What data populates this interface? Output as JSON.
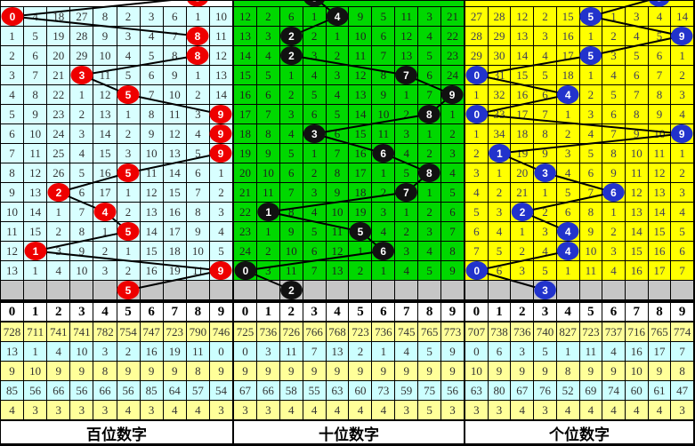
{
  "header_digits": [
    "0",
    "1",
    "2",
    "3",
    "4",
    "5",
    "6",
    "7",
    "8",
    "9"
  ],
  "stat_row_colors": [
    "#ffff99",
    "#ccffff",
    "#ffff99",
    "#ccffff",
    "#ffff99"
  ],
  "line_color": "#000000",
  "gray_row_color": "#c6c6c6",
  "panels": [
    {
      "id": "hundreds",
      "label": "百位数字",
      "bg": "#d8ffff",
      "strip_bg": "#ffffff",
      "text_color": "#333333",
      "circle_color": "#ee0000",
      "prev_draw_col": 8,
      "rows": [
        {
          "cells": [
            "0",
            "4",
            "18",
            "27",
            "8",
            "2",
            "3",
            "6",
            "1",
            "10"
          ],
          "draw": 0
        },
        {
          "cells": [
            "1",
            "5",
            "19",
            "28",
            "9",
            "3",
            "4",
            "7",
            "8",
            "11"
          ],
          "draw": 8
        },
        {
          "cells": [
            "2",
            "6",
            "20",
            "29",
            "10",
            "4",
            "5",
            "8",
            "8",
            "12"
          ],
          "draw": 8
        },
        {
          "cells": [
            "3",
            "7",
            "21",
            "3",
            "11",
            "5",
            "6",
            "9",
            "1",
            "13"
          ],
          "draw": 3
        },
        {
          "cells": [
            "4",
            "8",
            "22",
            "1",
            "12",
            "5",
            "7",
            "10",
            "2",
            "14"
          ],
          "draw": 5
        },
        {
          "cells": [
            "5",
            "9",
            "23",
            "2",
            "13",
            "1",
            "8",
            "11",
            "3",
            "9"
          ],
          "draw": 9
        },
        {
          "cells": [
            "6",
            "10",
            "24",
            "3",
            "14",
            "2",
            "9",
            "12",
            "4",
            "9"
          ],
          "draw": 9
        },
        {
          "cells": [
            "7",
            "11",
            "25",
            "4",
            "15",
            "3",
            "10",
            "13",
            "5",
            "9"
          ],
          "draw": 9
        },
        {
          "cells": [
            "8",
            "12",
            "26",
            "5",
            "16",
            "5",
            "11",
            "14",
            "6",
            "1"
          ],
          "draw": 5
        },
        {
          "cells": [
            "9",
            "13",
            "2",
            "6",
            "17",
            "1",
            "12",
            "15",
            "7",
            "2"
          ],
          "draw": 2
        },
        {
          "cells": [
            "10",
            "14",
            "1",
            "7",
            "4",
            "2",
            "13",
            "16",
            "8",
            "3"
          ],
          "draw": 4
        },
        {
          "cells": [
            "11",
            "15",
            "2",
            "8",
            "1",
            "5",
            "14",
            "17",
            "9",
            "4"
          ],
          "draw": 5
        },
        {
          "cells": [
            "12",
            "1",
            "3",
            "9",
            "2",
            "1",
            "15",
            "18",
            "10",
            "5"
          ],
          "draw": 1
        },
        {
          "cells": [
            "13",
            "1",
            "4",
            "10",
            "3",
            "2",
            "16",
            "19",
            "11",
            "9"
          ],
          "draw": 9
        }
      ],
      "gray_draw": 5,
      "stats": [
        [
          "728",
          "711",
          "741",
          "741",
          "782",
          "754",
          "747",
          "723",
          "790",
          "746"
        ],
        [
          "13",
          "1",
          "4",
          "10",
          "3",
          "2",
          "16",
          "19",
          "11",
          "0"
        ],
        [
          "9",
          "10",
          "9",
          "9",
          "8",
          "9",
          "9",
          "9",
          "8",
          "9"
        ],
        [
          "85",
          "56",
          "66",
          "56",
          "66",
          "56",
          "85",
          "64",
          "57",
          "54"
        ],
        [
          "4",
          "3",
          "3",
          "3",
          "3",
          "4",
          "3",
          "4",
          "4",
          "3"
        ]
      ]
    },
    {
      "id": "tens",
      "label": "十位数字",
      "bg": "#00d800",
      "strip_bg": "#00d800",
      "text_color": "#1f1f1f",
      "circle_color": "#111111",
      "prev_draw_col": 3,
      "rows": [
        {
          "cells": [
            "12",
            "2",
            "6",
            "1",
            "4",
            "9",
            "5",
            "11",
            "3",
            "21"
          ],
          "draw": 4
        },
        {
          "cells": [
            "13",
            "3",
            "2",
            "2",
            "1",
            "10",
            "6",
            "12",
            "4",
            "22"
          ],
          "draw": 2
        },
        {
          "cells": [
            "14",
            "4",
            "2",
            "3",
            "2",
            "11",
            "7",
            "13",
            "5",
            "23"
          ],
          "draw": 2
        },
        {
          "cells": [
            "15",
            "5",
            "1",
            "4",
            "3",
            "12",
            "8",
            "7",
            "6",
            "24"
          ],
          "draw": 7
        },
        {
          "cells": [
            "16",
            "6",
            "2",
            "5",
            "4",
            "13",
            "9",
            "1",
            "7",
            "9"
          ],
          "draw": 9
        },
        {
          "cells": [
            "17",
            "7",
            "3",
            "6",
            "5",
            "14",
            "10",
            "2",
            "8",
            "1"
          ],
          "draw": 8
        },
        {
          "cells": [
            "18",
            "8",
            "4",
            "3",
            "6",
            "15",
            "11",
            "3",
            "1",
            "2"
          ],
          "draw": 3
        },
        {
          "cells": [
            "19",
            "9",
            "5",
            "1",
            "7",
            "16",
            "6",
            "4",
            "2",
            "3"
          ],
          "draw": 6
        },
        {
          "cells": [
            "20",
            "10",
            "6",
            "2",
            "8",
            "17",
            "1",
            "5",
            "8",
            "4"
          ],
          "draw": 8
        },
        {
          "cells": [
            "21",
            "11",
            "7",
            "3",
            "9",
            "18",
            "2",
            "7",
            "1",
            "5"
          ],
          "draw": 7
        },
        {
          "cells": [
            "22",
            "1",
            "8",
            "4",
            "10",
            "19",
            "3",
            "1",
            "2",
            "6"
          ],
          "draw": 1
        },
        {
          "cells": [
            "23",
            "1",
            "9",
            "5",
            "11",
            "5",
            "4",
            "2",
            "3",
            "7"
          ],
          "draw": 5
        },
        {
          "cells": [
            "24",
            "2",
            "10",
            "6",
            "12",
            "1",
            "6",
            "3",
            "4",
            "8"
          ],
          "draw": 6
        },
        {
          "cells": [
            "0",
            "3",
            "11",
            "7",
            "13",
            "2",
            "1",
            "4",
            "5",
            "9"
          ],
          "draw": 0
        }
      ],
      "gray_draw": 2,
      "stats": [
        [
          "725",
          "736",
          "726",
          "766",
          "768",
          "723",
          "736",
          "745",
          "765",
          "773"
        ],
        [
          "0",
          "3",
          "11",
          "7",
          "13",
          "2",
          "1",
          "4",
          "5",
          "9"
        ],
        [
          "9",
          "9",
          "9",
          "9",
          "9",
          "9",
          "9",
          "9",
          "9",
          "9"
        ],
        [
          "67",
          "66",
          "58",
          "55",
          "63",
          "60",
          "73",
          "59",
          "75",
          "56"
        ],
        [
          "3",
          "3",
          "4",
          "4",
          "4",
          "4",
          "4",
          "3",
          "5",
          "3"
        ]
      ]
    },
    {
      "id": "units",
      "label": "个位数字",
      "bg": "#ffff00",
      "strip_bg": "#ffff00",
      "text_color": "#3c3c5a",
      "circle_color": "#2233cc",
      "prev_draw_col": 8,
      "rows": [
        {
          "cells": [
            "27",
            "28",
            "12",
            "2",
            "15",
            "5",
            "1",
            "3",
            "4",
            "14"
          ],
          "draw": 5
        },
        {
          "cells": [
            "28",
            "29",
            "13",
            "3",
            "16",
            "1",
            "2",
            "4",
            "5",
            "9"
          ],
          "draw": 9
        },
        {
          "cells": [
            "29",
            "30",
            "14",
            "4",
            "17",
            "5",
            "3",
            "5",
            "6",
            "1"
          ],
          "draw": 5
        },
        {
          "cells": [
            "0",
            "31",
            "15",
            "5",
            "18",
            "1",
            "4",
            "6",
            "7",
            "2"
          ],
          "draw": 0
        },
        {
          "cells": [
            "1",
            "32",
            "16",
            "6",
            "4",
            "2",
            "5",
            "7",
            "8",
            "3"
          ],
          "draw": 4
        },
        {
          "cells": [
            "0",
            "33",
            "17",
            "7",
            "1",
            "3",
            "6",
            "8",
            "9",
            "4"
          ],
          "draw": 0
        },
        {
          "cells": [
            "1",
            "34",
            "18",
            "8",
            "2",
            "4",
            "7",
            "9",
            "10",
            "9"
          ],
          "draw": 9
        },
        {
          "cells": [
            "2",
            "1",
            "19",
            "9",
            "3",
            "5",
            "8",
            "10",
            "11",
            "1"
          ],
          "draw": 1
        },
        {
          "cells": [
            "3",
            "1",
            "20",
            "3",
            "4",
            "6",
            "9",
            "11",
            "12",
            "2"
          ],
          "draw": 3
        },
        {
          "cells": [
            "4",
            "2",
            "21",
            "1",
            "5",
            "7",
            "6",
            "12",
            "13",
            "3"
          ],
          "draw": 6
        },
        {
          "cells": [
            "5",
            "3",
            "2",
            "2",
            "6",
            "8",
            "1",
            "13",
            "14",
            "4"
          ],
          "draw": 2
        },
        {
          "cells": [
            "6",
            "4",
            "1",
            "3",
            "4",
            "9",
            "2",
            "14",
            "15",
            "5"
          ],
          "draw": 4
        },
        {
          "cells": [
            "7",
            "5",
            "2",
            "4",
            "4",
            "10",
            "3",
            "15",
            "16",
            "6"
          ],
          "draw": 4
        },
        {
          "cells": [
            "0",
            "6",
            "3",
            "5",
            "1",
            "11",
            "4",
            "16",
            "17",
            "7"
          ],
          "draw": 0
        }
      ],
      "gray_draw": 3,
      "stats": [
        [
          "707",
          "738",
          "736",
          "740",
          "827",
          "723",
          "737",
          "716",
          "765",
          "774"
        ],
        [
          "0",
          "6",
          "3",
          "5",
          "1",
          "11",
          "4",
          "16",
          "17",
          "7"
        ],
        [
          "10",
          "9",
          "9",
          "9",
          "8",
          "9",
          "9",
          "10",
          "9",
          "8"
        ],
        [
          "63",
          "80",
          "67",
          "76",
          "52",
          "69",
          "74",
          "60",
          "61",
          "47"
        ],
        [
          "3",
          "3",
          "4",
          "3",
          "4",
          "4",
          "4",
          "4",
          "4",
          "3"
        ]
      ]
    }
  ],
  "chart_data": {
    "type": "line",
    "title": "",
    "xlabel": "",
    "ylabel": "",
    "x_range": [
      0,
      9
    ],
    "grid": true,
    "legend_position": "none",
    "series": [
      {
        "name": "百位数字",
        "values": [
          0,
          8,
          8,
          3,
          5,
          9,
          9,
          9,
          5,
          2,
          4,
          5,
          1,
          9,
          5
        ]
      },
      {
        "name": "十位数字",
        "values": [
          4,
          2,
          2,
          7,
          9,
          8,
          3,
          6,
          8,
          7,
          1,
          5,
          6,
          0,
          2
        ]
      },
      {
        "name": "个位数字",
        "values": [
          5,
          9,
          5,
          0,
          4,
          0,
          9,
          1,
          3,
          6,
          2,
          4,
          4,
          0,
          3
        ]
      }
    ]
  }
}
